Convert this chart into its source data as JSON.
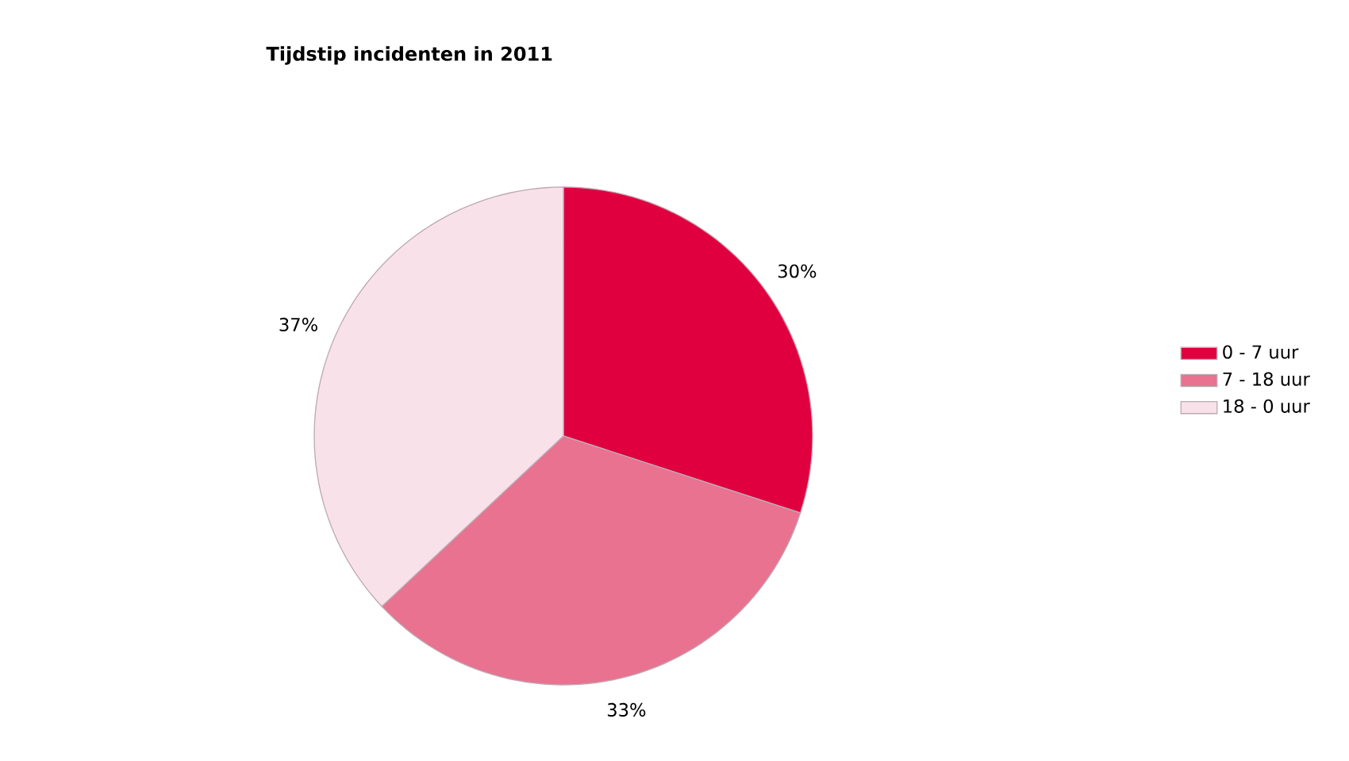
{
  "chart_data": {
    "type": "pie",
    "title": "Tijdstip incidenten in 2011",
    "categories": [
      "0 - 7 uur",
      "7 - 18 uur",
      "18 - 0 uur"
    ],
    "values": [
      30,
      33,
      37
    ],
    "colors": [
      "#e0003f",
      "#e8728f",
      "#f9e1e9"
    ],
    "value_labels": [
      "30%",
      "33%",
      "37%"
    ],
    "legend": "right"
  }
}
